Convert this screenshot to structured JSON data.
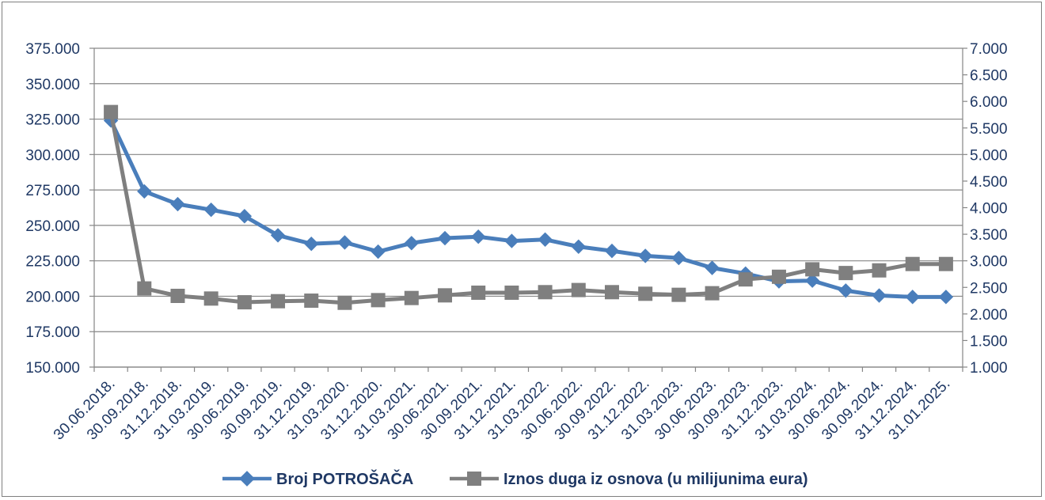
{
  "chart_data": {
    "type": "line",
    "categories": [
      "30.06.2018.",
      "30.09.2018.",
      "31.12.2018.",
      "31.03.2019.",
      "30.06.2019.",
      "30.09.2019.",
      "31.12.2019.",
      "31.03.2020.",
      "31.12.2020.",
      "31.03.2021.",
      "30.06.2021.",
      "30.09.2021.",
      "31.12.2021.",
      "31.03.2022.",
      "30.06.2022.",
      "30.09.2022.",
      "31.12.2022.",
      "31.03.2023.",
      "30.06.2023.",
      "30.09.2023.",
      "31.12.2023.",
      "31.03.2024.",
      "30.06.2024.",
      "30.09.2024.",
      "31.12.2024.",
      "31.01.2025."
    ],
    "y_left": {
      "ylim": [
        150000,
        375000
      ],
      "tick_labels": [
        "150.000",
        "175.000",
        "200.000",
        "225.000",
        "250.000",
        "275.000",
        "300.000",
        "325.000",
        "350.000",
        "375.000"
      ],
      "tick_values": [
        150000,
        175000,
        200000,
        225000,
        250000,
        275000,
        300000,
        325000,
        350000,
        375000
      ]
    },
    "y_right": {
      "ylim": [
        1000,
        7000
      ],
      "tick_labels": [
        "1.000",
        "1.500",
        "2.000",
        "2.500",
        "3.000",
        "3.500",
        "4.000",
        "4.500",
        "5.000",
        "5.500",
        "6.000",
        "6.500",
        "7.000"
      ],
      "tick_values": [
        1000,
        1500,
        2000,
        2500,
        3000,
        3500,
        4000,
        4500,
        5000,
        5500,
        6000,
        6500,
        7000
      ]
    },
    "grid": "horizontal",
    "legend_position": "bottom",
    "series": [
      {
        "name": "Broj POTROŠAČA",
        "axis": "left",
        "marker": "diamond",
        "color": "#4a7ebb",
        "values": [
          324000,
          274000,
          265000,
          261000,
          256500,
          243000,
          237000,
          238000,
          231500,
          237500,
          241000,
          242000,
          239000,
          240000,
          235000,
          232000,
          228500,
          227000,
          220000,
          216000,
          210500,
          211000,
          204000,
          200500,
          199500,
          199500
        ]
      },
      {
        "name": "Iznos duga iz osnova (u milijunima eura)",
        "axis": "right",
        "marker": "square",
        "color": "#7f7f7f",
        "values": [
          5800,
          2480,
          2340,
          2290,
          2220,
          2240,
          2250,
          2210,
          2260,
          2300,
          2350,
          2400,
          2400,
          2410,
          2450,
          2410,
          2380,
          2360,
          2390,
          2650,
          2700,
          2840,
          2770,
          2820,
          2940,
          2940
        ]
      }
    ]
  }
}
